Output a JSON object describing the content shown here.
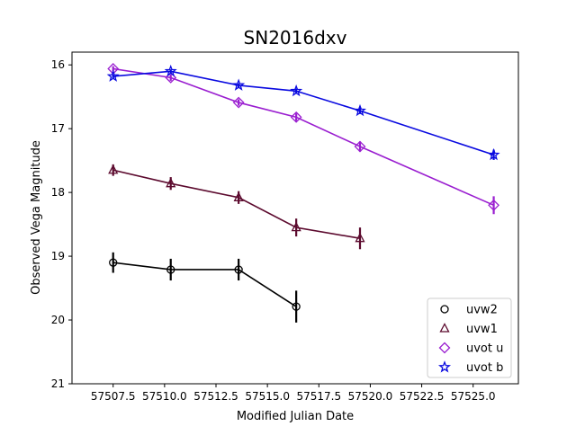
{
  "chart_data": {
    "type": "line",
    "title": "SN2016dxv",
    "xlabel": "Modified Julian Date",
    "ylabel": "Observed Vega Magnitude",
    "xlim": [
      57505.5,
      57527.2
    ],
    "ylim": [
      21,
      15.8
    ],
    "y_inverted": true,
    "x_ticks": [
      57507.5,
      57510.0,
      57512.5,
      57515.0,
      57517.5,
      57520.0,
      57522.5,
      57525.0
    ],
    "x_tick_labels": [
      "57507.5",
      "57510.0",
      "57512.5",
      "57515.0",
      "57517.5",
      "57520.0",
      "57522.5",
      "57525.0"
    ],
    "y_ticks": [
      16,
      17,
      18,
      19,
      20,
      21
    ],
    "y_tick_labels": [
      "16",
      "17",
      "18",
      "19",
      "20",
      "21"
    ],
    "grid": false,
    "legend_position": "lower-right",
    "series": [
      {
        "name": "uvw2",
        "color": "#000000",
        "marker": "circle",
        "x": [
          57507.5,
          57510.3,
          57513.6,
          57516.4
        ],
        "y": [
          19.1,
          19.21,
          19.21,
          19.79
        ],
        "yerr": [
          0.16,
          0.17,
          0.17,
          0.25
        ]
      },
      {
        "name": "uvw1",
        "color": "#5c0a2e",
        "marker": "triangle",
        "x": [
          57507.5,
          57510.3,
          57513.6,
          57516.4,
          57519.5
        ],
        "y": [
          17.65,
          17.86,
          18.08,
          18.55,
          18.72
        ],
        "yerr": [
          0.09,
          0.1,
          0.1,
          0.14,
          0.17
        ]
      },
      {
        "name": "uvot u",
        "color": "#9a1ed0",
        "marker": "diamond",
        "x": [
          57507.5,
          57510.3,
          57513.6,
          57516.4,
          57519.5,
          57526.0
        ],
        "y": [
          16.06,
          16.2,
          16.59,
          16.82,
          17.28,
          18.2
        ],
        "yerr": [
          0.04,
          0.05,
          0.05,
          0.06,
          0.08,
          0.14
        ]
      },
      {
        "name": "uvot b",
        "color": "#0a0ae0",
        "marker": "star",
        "x": [
          57507.5,
          57510.3,
          57513.6,
          57516.4,
          57519.5,
          57526.0
        ],
        "y": [
          16.18,
          16.1,
          16.32,
          16.41,
          16.72,
          17.41
        ],
        "yerr": [
          0.03,
          0.03,
          0.03,
          0.04,
          0.05,
          0.08
        ]
      }
    ]
  }
}
